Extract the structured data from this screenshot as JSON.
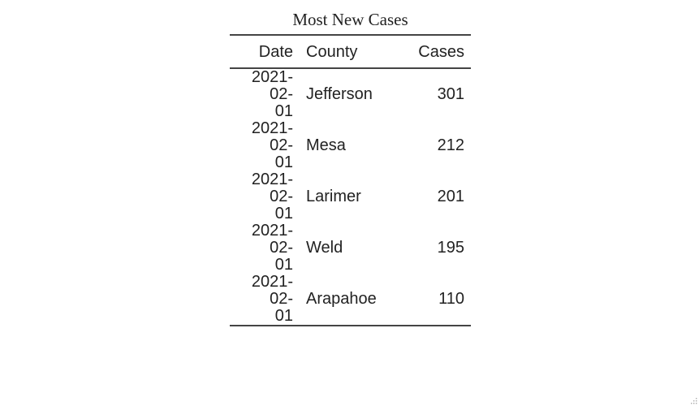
{
  "table": {
    "caption": "Most New Cases",
    "headers": {
      "date": "Date",
      "county": "County",
      "cases": "Cases"
    },
    "rows": [
      {
        "date_line1": "2021-02-",
        "date_line2": "01",
        "county": "Jefferson",
        "cases": "301"
      },
      {
        "date_line1": "2021-02-",
        "date_line2": "01",
        "county": "Mesa",
        "cases": "212"
      },
      {
        "date_line1": "2021-02-",
        "date_line2": "01",
        "county": "Larimer",
        "cases": "201"
      },
      {
        "date_line1": "2021-02-",
        "date_line2": "01",
        "county": "Weld",
        "cases": "195"
      },
      {
        "date_line1": "2021-02-",
        "date_line2": "01",
        "county": "Arapahoe",
        "cases": "110"
      }
    ]
  },
  "icons": {
    "resize_handle": "resize-grip-icon"
  }
}
